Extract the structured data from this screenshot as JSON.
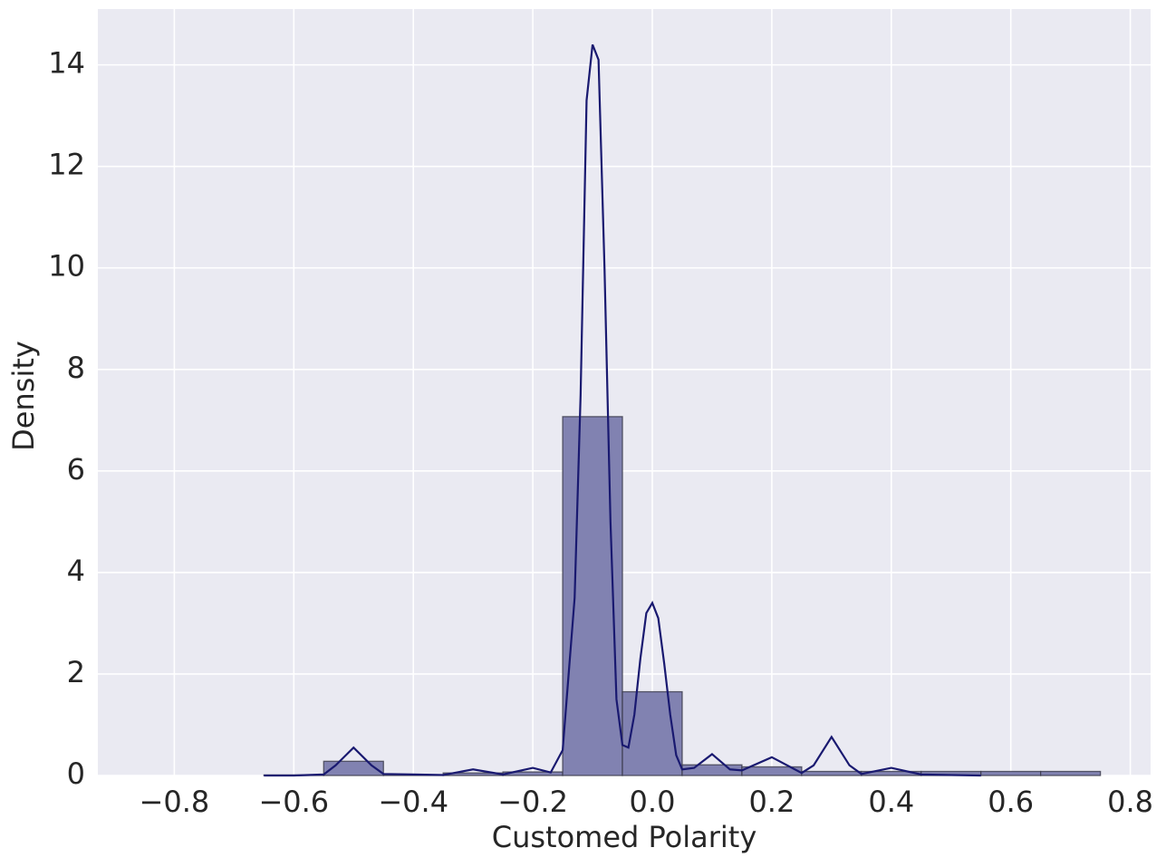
{
  "chart_data": {
    "type": "histogram",
    "xlabel": "Customed Polarity",
    "ylabel": "Density",
    "bins": [
      -0.65,
      -0.55,
      -0.45,
      -0.35,
      -0.25,
      -0.15,
      -0.05,
      0.05,
      0.15,
      0.25,
      0.35,
      0.45,
      0.55,
      0.65,
      0.75
    ],
    "values": [
      0.01,
      0.28,
      0.01,
      0.05,
      0.07,
      7.07,
      1.65,
      0.21,
      0.17,
      0.08,
      0.08,
      0.08,
      0.08,
      0.08
    ],
    "color": "#8182b1",
    "edgecolor": "#3a3a4a",
    "kde": {
      "color": "#191970",
      "x": [
        -0.65,
        -0.6,
        -0.55,
        -0.53,
        -0.5,
        -0.47,
        -0.45,
        -0.4,
        -0.35,
        -0.3,
        -0.25,
        -0.2,
        -0.17,
        -0.15,
        -0.13,
        -0.12,
        -0.11,
        -0.1,
        -0.09,
        -0.08,
        -0.07,
        -0.06,
        -0.05,
        -0.04,
        -0.03,
        -0.02,
        -0.01,
        0,
        0.01,
        0.02,
        0.03,
        0.04,
        0.05,
        0.07,
        0.1,
        0.13,
        0.15,
        0.2,
        0.25,
        0.27,
        0.3,
        0.33,
        0.35,
        0.4,
        0.45,
        0.5,
        0.55
      ],
      "y": [
        0,
        0,
        0.02,
        0.2,
        0.55,
        0.2,
        0.03,
        0.02,
        0.01,
        0.12,
        0.02,
        0.15,
        0.06,
        0.5,
        3.5,
        7.5,
        13.3,
        14.4,
        14.1,
        10,
        5,
        1.5,
        0.6,
        0.55,
        1.2,
        2.3,
        3.2,
        3.4,
        3.1,
        2.2,
        1.2,
        0.4,
        0.12,
        0.15,
        0.42,
        0.12,
        0.1,
        0.36,
        0.05,
        0.2,
        0.76,
        0.2,
        0.03,
        0.15,
        0.02,
        0.01,
        0
      ]
    },
    "xlim": [
      -0.928,
      0.834
    ],
    "ylim": [
      0,
      15.1
    ],
    "xticks": [
      {
        "value": -0.8,
        "label": "−0.8"
      },
      {
        "value": -0.6,
        "label": "−0.6"
      },
      {
        "value": -0.4,
        "label": "−0.4"
      },
      {
        "value": -0.2,
        "label": "−0.2"
      },
      {
        "value": 0,
        "label": "0.0"
      },
      0.2,
      0.4,
      0.6,
      0.8
    ],
    "yticks": [
      0,
      2,
      4,
      6,
      8,
      10,
      12,
      14
    ],
    "grid": true
  }
}
